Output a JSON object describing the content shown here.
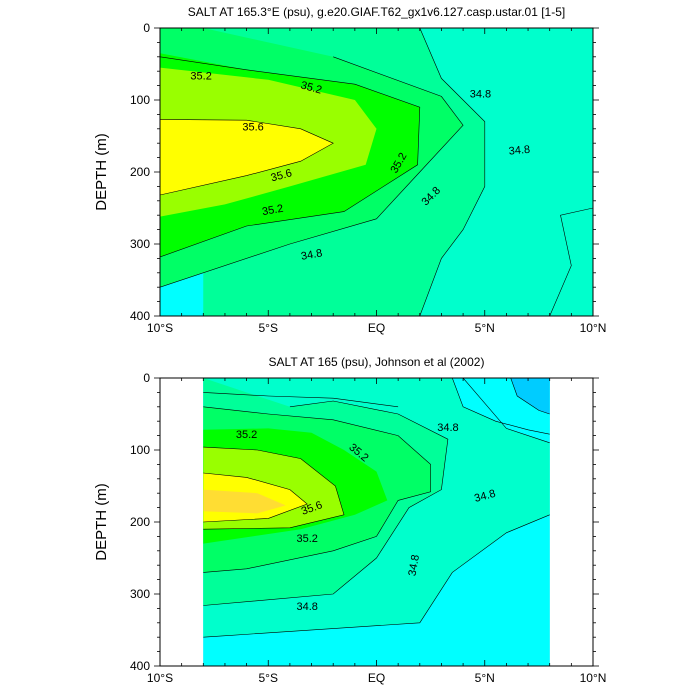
{
  "chart_data": [
    {
      "type": "contour",
      "title": "SALT AT 165.3°E (psu), g.e20.GIAF.T62_gx1v6.127.casp.ustar.01 [1-5]",
      "ylabel": "DEPTH (m)",
      "xlabel": "",
      "xlim": [
        -10,
        10
      ],
      "ylim": [
        400,
        0
      ],
      "x_tick_labels": [
        "10°S",
        "5°S",
        "EQ",
        "5°N",
        "10°N"
      ],
      "y_tick_labels": [
        "0",
        "100",
        "200",
        "300",
        "400"
      ],
      "contour_labels": [
        "35.2",
        "35.2",
        "34.8",
        "35.6",
        "35.6",
        "35.2",
        "34.8",
        "35.2",
        "34.8",
        "34.8"
      ],
      "fill_levels": [
        34.6,
        34.8,
        35.0,
        35.2,
        35.4,
        35.6
      ],
      "colors": [
        "#00ffff",
        "#00ffcc",
        "#00ff99",
        "#00ff66",
        "#00ff00",
        "#99ff00",
        "#ffff00"
      ]
    },
    {
      "type": "contour",
      "title": "SALT AT 165 (psu), Johnson et al (2002)",
      "ylabel": "DEPTH (m)",
      "xlabel": "",
      "xlim": [
        -10,
        10
      ],
      "ylim": [
        400,
        0
      ],
      "data_xrange": [
        -8,
        8
      ],
      "x_tick_labels": [
        "10°S",
        "5°S",
        "EQ",
        "5°N",
        "10°N"
      ],
      "y_tick_labels": [
        "0",
        "100",
        "200",
        "300",
        "400"
      ],
      "contour_labels": [
        "35.2",
        "35.2",
        "34.8",
        "34.8",
        "35.6",
        "35.2",
        "34.8",
        "34.8"
      ],
      "fill_levels": [
        34.4,
        34.6,
        34.8,
        35.0,
        35.2,
        35.4,
        35.6,
        35.8
      ],
      "colors": [
        "#00ccff",
        "#00ffff",
        "#00ffcc",
        "#00ff99",
        "#00ff66",
        "#00ff00",
        "#99ff00",
        "#ffff00",
        "#ffdd33"
      ]
    }
  ]
}
